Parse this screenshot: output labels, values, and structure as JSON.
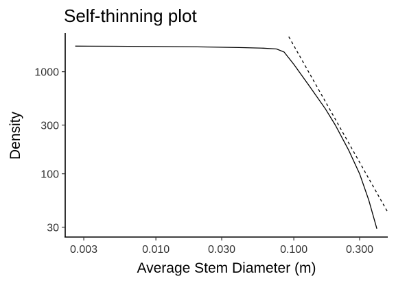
{
  "chart_data": {
    "type": "line",
    "title": "Self-thinning plot",
    "xlabel": "Average Stem Diameter (m)",
    "ylabel": "Density",
    "x_scale": "log",
    "y_scale": "log",
    "xlim": [
      0.0022,
      0.48
    ],
    "ylim": [
      24,
      2400
    ],
    "grid": false,
    "x_ticks": [
      {
        "value": 0.003,
        "label": "0.003"
      },
      {
        "value": 0.01,
        "label": "0.010"
      },
      {
        "value": 0.03,
        "label": "0.030"
      },
      {
        "value": 0.1,
        "label": "0.100"
      },
      {
        "value": 0.3,
        "label": "0.300"
      }
    ],
    "y_ticks": [
      {
        "value": 30,
        "label": "30"
      },
      {
        "value": 100,
        "label": "100"
      },
      {
        "value": 300,
        "label": "300"
      },
      {
        "value": 1000,
        "label": "1000"
      }
    ],
    "series": [
      {
        "style": "solid",
        "x": [
          0.0026,
          0.005,
          0.01,
          0.02,
          0.04,
          0.06,
          0.075,
          0.085,
          0.1,
          0.13,
          0.17,
          0.2,
          0.25,
          0.3,
          0.35,
          0.4
        ],
        "y": [
          1780,
          1775,
          1765,
          1750,
          1725,
          1700,
          1670,
          1560,
          1180,
          720,
          430,
          300,
          170,
          100,
          55,
          29
        ]
      },
      {
        "style": "dashed",
        "x": [
          0.092,
          0.48
        ],
        "y": [
          2200,
          42
        ]
      }
    ]
  }
}
